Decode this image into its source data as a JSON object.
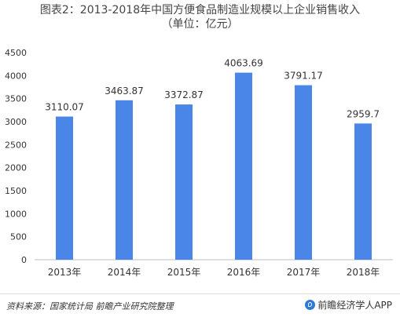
{
  "chart_data": {
    "type": "bar",
    "title_line1": "图表2：2013-2018年中国方便食品制造业规模以上企业销售收入",
    "title_line2": "（单位：亿元）",
    "categories": [
      "2013年",
      "2014年",
      "2015年",
      "2016年",
      "2017年",
      "2018年"
    ],
    "values": [
      3110.07,
      3463.87,
      3372.87,
      4063.69,
      3791.17,
      2959.7
    ],
    "value_labels": [
      "3110.07",
      "3463.87",
      "3372.87",
      "4063.69",
      "3791.17",
      "2959.7"
    ],
    "ylim": [
      0,
      4500
    ],
    "yticks": [
      "0",
      "500",
      "1000",
      "1500",
      "2000",
      "2500",
      "3000",
      "3500",
      "4000",
      "4500"
    ],
    "bar_color": "#4a86e8",
    "grid": false,
    "legend": false
  },
  "footer": {
    "source": "资料来源：国家统计局 前瞻产业研究院整理",
    "brand": "前瞻经济学人APP",
    "brand_color": "#2e7bd6"
  }
}
